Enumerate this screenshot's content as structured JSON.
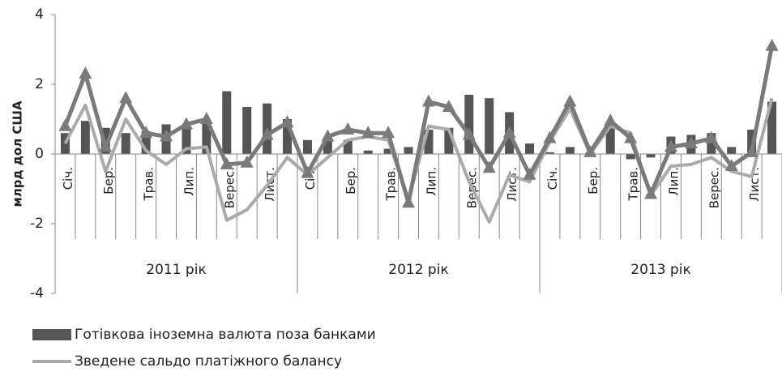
{
  "chart_data": {
    "type": "bar-line",
    "y_label": "млрд дол США",
    "categories": [
      "Січ.",
      null,
      "Бер.",
      null,
      "Трав.",
      null,
      "Лип.",
      null,
      "Верес.",
      null,
      "Лист.",
      null,
      "Січ.",
      null,
      "Бер.",
      null,
      "Трав.",
      null,
      "Лип.",
      null,
      "Верес.",
      null,
      "Лист.",
      null,
      "Січ.",
      null,
      "Бер.",
      null,
      "Трав.",
      null,
      "Лип.",
      null,
      "Верес.",
      null,
      "Лист.",
      null
    ],
    "year_labels": [
      "2011 рік",
      "2012 рік",
      "2013 рік"
    ],
    "ylim": [
      -4,
      4
    ],
    "yticks": [
      -4,
      -2,
      0,
      2,
      4
    ],
    "series": [
      {
        "name": "Готівкова іноземна валюта поза банками",
        "kind": "bar",
        "color": "#555555",
        "values": [
          0.6,
          0.95,
          0.75,
          0.6,
          0.65,
          0.85,
          0.85,
          0.95,
          1.8,
          1.35,
          1.45,
          1.0,
          0.4,
          0.45,
          0.4,
          0.1,
          0.15,
          0.2,
          0.7,
          0.75,
          1.7,
          1.6,
          1.2,
          0.3,
          0.05,
          0.2,
          0.05,
          0.9,
          -0.15,
          -0.1,
          0.5,
          0.55,
          0.6,
          0.2,
          0.7,
          1.5
        ]
      },
      {
        "name": "Зведене сальдо платіжного балансу",
        "kind": "line",
        "color": "#aaaaaa",
        "values": [
          0.3,
          1.4,
          -0.5,
          1.0,
          0.1,
          -0.3,
          0.15,
          0.2,
          -1.9,
          -1.6,
          -0.9,
          -0.1,
          -0.6,
          -0.1,
          0.4,
          0.5,
          0.4,
          -1.3,
          0.8,
          0.7,
          -0.8,
          -1.95,
          -0.6,
          -0.8,
          0.35,
          1.3,
          0.0,
          0.8,
          0.6,
          -1.2,
          -0.35,
          -0.3,
          -0.1,
          -0.5,
          -0.65,
          1.6
        ]
      },
      {
        "kind": "line-marker",
        "color": "#7a7a7a",
        "values": [
          0.8,
          2.3,
          0.2,
          1.6,
          0.6,
          0.5,
          0.85,
          1.0,
          -0.3,
          -0.25,
          0.55,
          0.9,
          -0.55,
          0.5,
          0.7,
          0.6,
          0.6,
          -1.4,
          1.5,
          1.35,
          0.55,
          -0.4,
          0.6,
          -0.6,
          0.45,
          1.5,
          0.05,
          0.95,
          0.45,
          -1.15,
          0.2,
          0.3,
          0.45,
          -0.35,
          0.05,
          3.1
        ]
      }
    ]
  }
}
